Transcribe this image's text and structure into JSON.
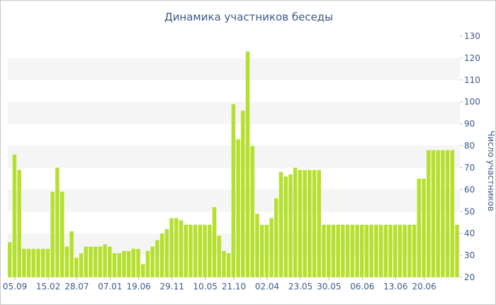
{
  "chart_data": {
    "type": "bar",
    "title": "Динамика участников беседы",
    "ylabel": "Число участников",
    "xlabel": "",
    "ylim": [
      20,
      130
    ],
    "yticks": [
      20,
      30,
      40,
      50,
      60,
      70,
      80,
      90,
      100,
      110,
      120,
      130
    ],
    "y_axis_side": "right",
    "grid": "alternating horizontal bands",
    "bar_color": "#b5e02f",
    "band_color": "#f5f5f5",
    "text_color": "#3d5a8a",
    "x_tick_labels": [
      {
        "label": "05.09",
        "index": 1
      },
      {
        "label": "15.02",
        "index": 8
      },
      {
        "label": "28.07",
        "index": 14
      },
      {
        "label": "07.01",
        "index": 21
      },
      {
        "label": "19.06",
        "index": 27
      },
      {
        "label": "29.11",
        "index": 34
      },
      {
        "label": "10.05",
        "index": 41
      },
      {
        "label": "21.10",
        "index": 47
      },
      {
        "label": "02.04",
        "index": 54
      },
      {
        "label": "23.05",
        "index": 61
      },
      {
        "label": "30.05",
        "index": 67
      },
      {
        "label": "06.06",
        "index": 74
      },
      {
        "label": "13.06",
        "index": 81
      },
      {
        "label": "20.06",
        "index": 87
      }
    ],
    "values": [
      36,
      76,
      69,
      33,
      33,
      33,
      33,
      33,
      33,
      59,
      70,
      59,
      34,
      41,
      29,
      31,
      34,
      34,
      34,
      34,
      35,
      34,
      31,
      31,
      32,
      32,
      33,
      33,
      26,
      32,
      34,
      37,
      40,
      42,
      47,
      47,
      46,
      44,
      44,
      44,
      44,
      44,
      44,
      52,
      39,
      32,
      31,
      99,
      83,
      96,
      123,
      80,
      49,
      44,
      44,
      47,
      56,
      68,
      66,
      67,
      70,
      69,
      69,
      69,
      69,
      69,
      44,
      44,
      44,
      44,
      44,
      44,
      44,
      44,
      44,
      44,
      44,
      44,
      44,
      44,
      44,
      44,
      44,
      44,
      44,
      44,
      65,
      65,
      78,
      78,
      78,
      78,
      78,
      78,
      44
    ]
  }
}
